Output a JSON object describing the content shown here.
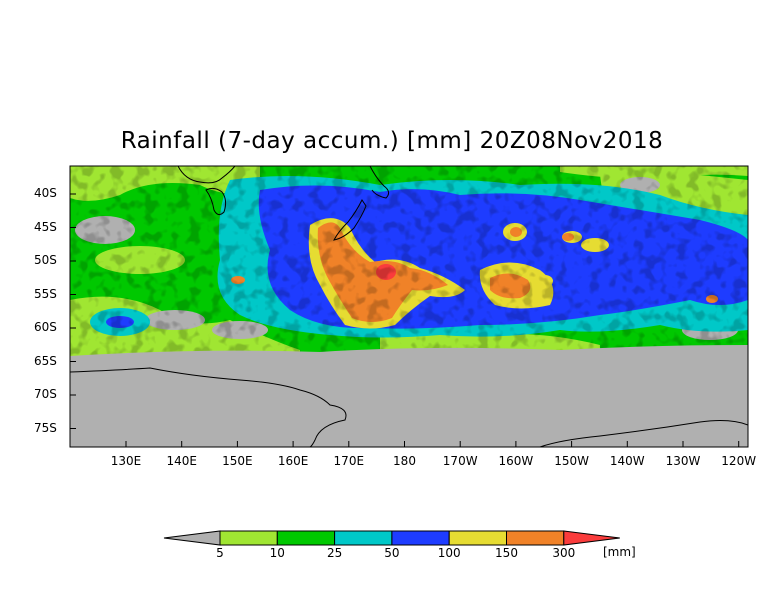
{
  "title": "Rainfall (7-day accum.) [mm] 20Z08Nov2018",
  "map": {
    "type": "precipitation-map",
    "region": "Southern Ocean / New Zealand",
    "background_color": "#b0b0b0",
    "latitude_labels": [
      "40S",
      "45S",
      "50S",
      "55S",
      "60S",
      "65S",
      "70S",
      "75S"
    ],
    "longitude_labels": [
      "130E",
      "140E",
      "150E",
      "160E",
      "170E",
      "180",
      "170W",
      "160W",
      "150W",
      "140W",
      "130W",
      "120W"
    ]
  },
  "legend": {
    "thresholds": [
      "5",
      "10",
      "25",
      "50",
      "100",
      "150",
      "300"
    ],
    "unit": "[mm]",
    "colors": [
      "#b0b0b0",
      "#a0e632",
      "#00c800",
      "#00c8c8",
      "#1e3cff",
      "#e6dc32",
      "#f08228",
      "#fa3c3c"
    ]
  }
}
